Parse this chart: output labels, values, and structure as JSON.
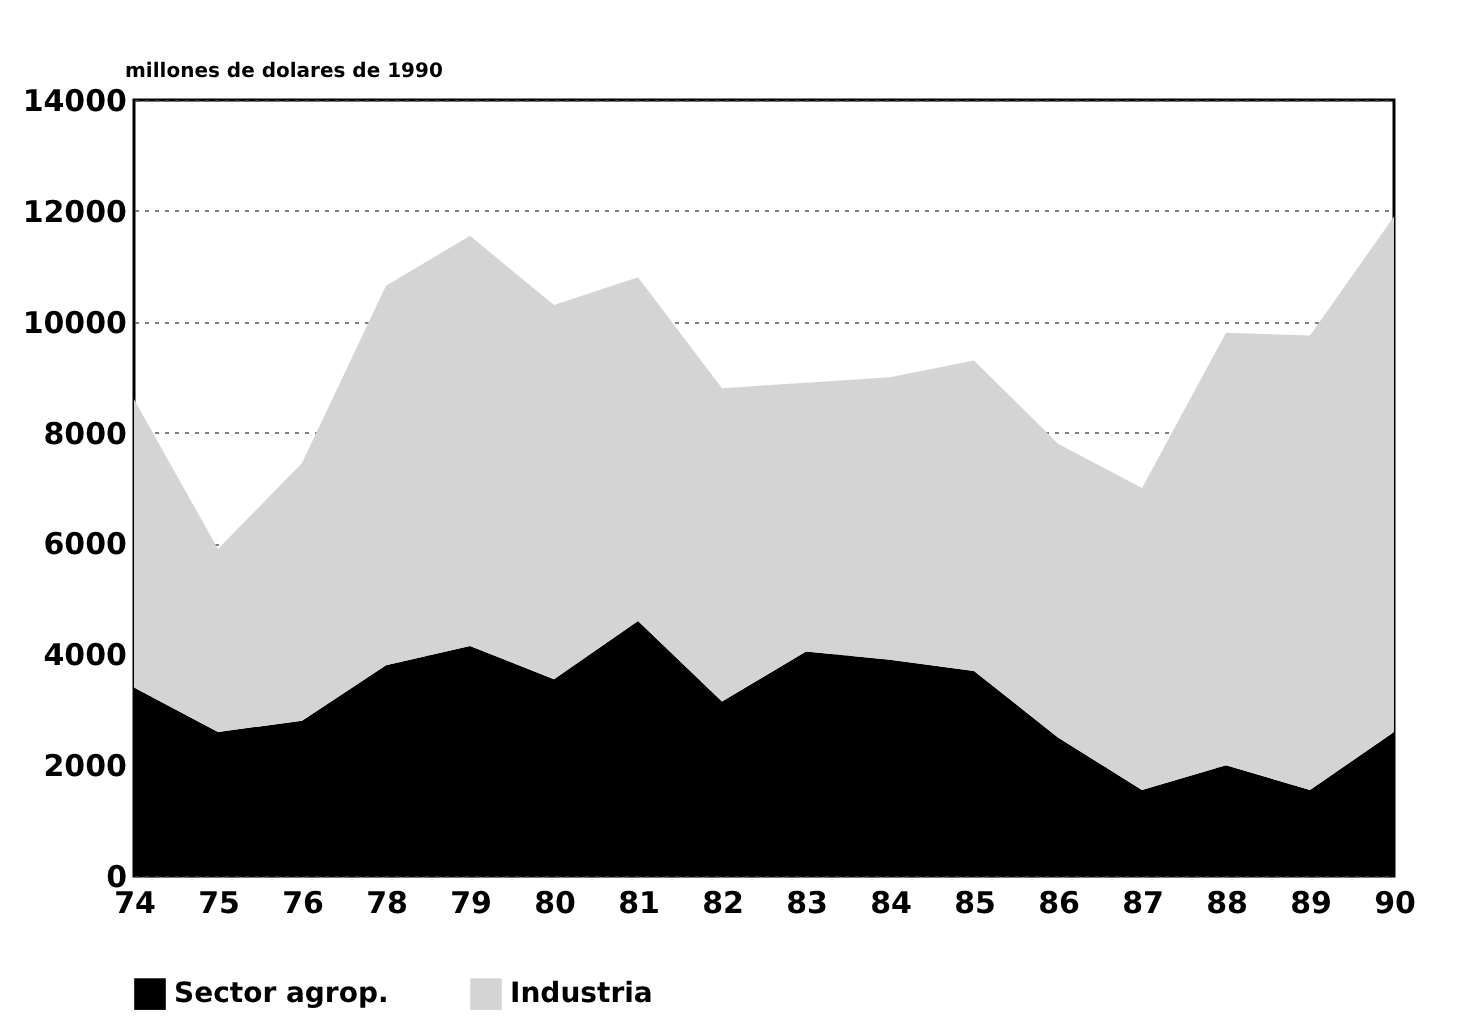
{
  "chart_data": {
    "type": "area",
    "stacked": true,
    "ylabel": "millones de dolares de 1990",
    "categories": [
      "74",
      "75",
      "76",
      "78",
      "79",
      "80",
      "81",
      "82",
      "83",
      "84",
      "85",
      "86",
      "87",
      "88",
      "89",
      "90"
    ],
    "series": [
      {
        "name": "Sector agrop.",
        "color": "#000000",
        "values": [
          3400,
          2600,
          2800,
          3800,
          4150,
          3550,
          4600,
          3150,
          4050,
          3900,
          3700,
          2500,
          1550,
          2000,
          1550,
          2600
        ]
      },
      {
        "name": "Industria",
        "color": "#d4d4d4",
        "values": [
          5200,
          3300,
          4650,
          6850,
          7400,
          6750,
          6200,
          5650,
          4850,
          5100,
          5600,
          5300,
          5450,
          7800,
          8200,
          9300
        ]
      }
    ],
    "ylim": [
      0,
      14000
    ],
    "yticks": [
      0,
      2000,
      4000,
      6000,
      8000,
      10000,
      12000,
      14000
    ],
    "grid": "y",
    "legend": "bottom"
  }
}
